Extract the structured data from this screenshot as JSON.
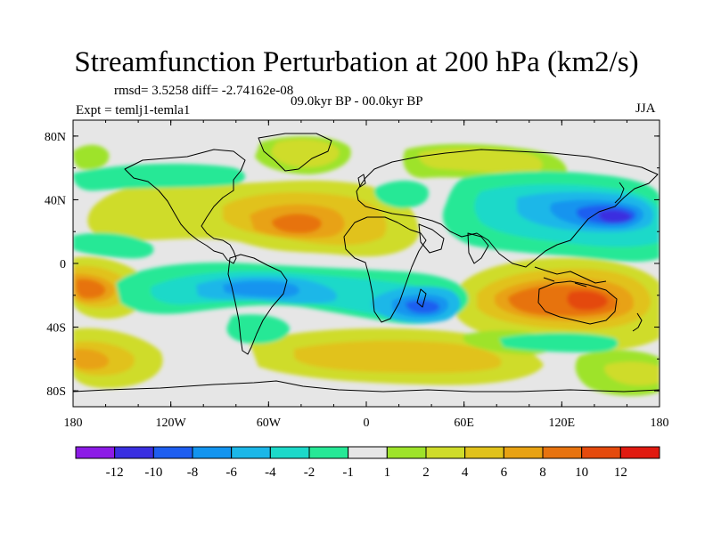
{
  "figure": {
    "title": "Streamfunction Perturbation at 200 hPa (km2/s)",
    "stats": "rmsd= 3.5258  diff= -2.74162e-08",
    "period": "09.0kyr BP - 00.0kyr BP",
    "experiment": "Expt = temlj1-temla1",
    "season": "JJA"
  },
  "map": {
    "projection": "cylindrical equidistant",
    "lon_range": [
      -180,
      180
    ],
    "lat_range": [
      -90,
      90
    ],
    "xtick_labels": [
      "180",
      "120W",
      "60W",
      "0",
      "60E",
      "120E",
      "180"
    ],
    "ytick_labels": [
      "80N",
      "40N",
      "0",
      "40S",
      "80S"
    ]
  },
  "colorbar": {
    "labels": [
      "-12",
      "-10",
      "-8",
      "-6",
      "-4",
      "-2",
      "-1",
      "1",
      "2",
      "4",
      "6",
      "8",
      "10",
      "12"
    ],
    "colors": [
      "#8c1be6",
      "#3a2fe0",
      "#1e5ef0",
      "#1294ef",
      "#1bb7e8",
      "#1cd9c9",
      "#26e896",
      "#e6e6e6",
      "#9ee32a",
      "#cfdc2a",
      "#e1c21b",
      "#e8a212",
      "#e7730f",
      "#e44a0d",
      "#e01a10"
    ]
  },
  "field_features": [
    {
      "name": "ridge-central-atlantic",
      "type": "high",
      "peak_label": "8"
    },
    {
      "name": "ridge-australia",
      "type": "high",
      "peak_label": "10"
    },
    {
      "name": "ridge-south-pacific",
      "type": "high",
      "peak_label": "8"
    },
    {
      "name": "trough-northwest-pacific",
      "type": "low",
      "peak_label": "-10"
    },
    {
      "name": "trough-south-atlantic",
      "type": "low",
      "peak_label": "-6"
    },
    {
      "name": "trough-south-indian",
      "type": "low",
      "peak_label": "-6"
    }
  ]
}
